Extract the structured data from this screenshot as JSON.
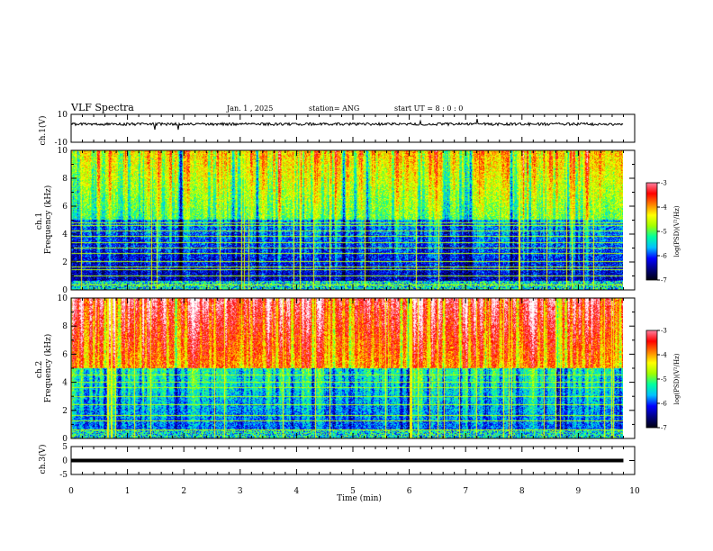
{
  "header": {
    "title": "VLF Spectra",
    "date": "Jan. 1 , 2025",
    "station": "station= ANG",
    "start": "start UT =  8 : 0 : 0"
  },
  "colors": {
    "background": "#000000",
    "colormap": [
      "#000010",
      "#000080",
      "#0000ff",
      "#00c0ff",
      "#00ffa0",
      "#a0ff00",
      "#ffff00",
      "#ff8000",
      "#ff0000",
      "#ff80a0",
      "#ffffff"
    ],
    "waveform": "#000000"
  },
  "chart_data": [
    {
      "type": "line",
      "panel": "ch1-waveform",
      "ylabel": "ch.1(V)",
      "ylim": [
        -10,
        10
      ],
      "yticks": [
        "10",
        "-10"
      ],
      "series": [
        {
          "values": [
            3,
            3
          ]
        }
      ],
      "x_range_min": [
        0,
        9.8
      ]
    },
    {
      "type": "heatmap",
      "panel": "ch1-spectrogram",
      "ylabel": "ch.1 Frequency (kHz)",
      "ylim": [
        0,
        10
      ],
      "yticks": [
        "0",
        "2",
        "4",
        "6",
        "8",
        "10"
      ],
      "x_range_min": [
        0,
        9.8
      ],
      "colorbar": {
        "label": "log(PSD)(V²/Hz)",
        "range": [
          -7,
          -3
        ],
        "ticks": [
          "-3",
          "-4",
          "-5",
          "-6",
          "-7"
        ]
      },
      "tone_lines_khz": [
        0.3,
        1.0,
        1.4,
        1.6,
        2.0,
        2.6,
        3.0,
        3.4,
        3.8,
        4.2,
        4.6,
        4.8
      ],
      "texture": {
        "seed": 11,
        "hi_freq_level": 0.38,
        "lo_freq_level": 0.1
      }
    },
    {
      "type": "heatmap",
      "panel": "ch2-spectrogram",
      "ylabel": "ch.2 Frequency (kHz)",
      "ylim": [
        0,
        10
      ],
      "yticks": [
        "0",
        "2",
        "4",
        "6",
        "8",
        "10"
      ],
      "x_range_min": [
        0,
        9.8
      ],
      "colorbar": {
        "label": "log(PSD)(V²/Hz)",
        "range": [
          -7,
          -3
        ],
        "ticks": [
          "-3",
          "-4",
          "-5",
          "-6",
          "-7"
        ]
      },
      "tone_lines_khz": [
        0.6,
        1.2,
        1.6,
        2.4,
        3.0,
        3.6,
        4.0,
        4.5
      ],
      "texture": {
        "seed": 29,
        "hi_freq_level": 0.62,
        "lo_freq_level": 0.2
      }
    },
    {
      "type": "line",
      "panel": "ch3-waveform",
      "ylabel": "ch.3(V)",
      "ylim": [
        -5,
        5
      ],
      "yticks": [
        "5",
        "0",
        "-5"
      ],
      "series": [
        {
          "values": [
            0,
            0
          ]
        }
      ],
      "x_range_min": [
        0,
        9.8
      ]
    }
  ],
  "xaxis": {
    "xlabel": "Time (min)",
    "range": [
      0,
      10
    ],
    "ticks": [
      "0",
      "1",
      "2",
      "3",
      "4",
      "5",
      "6",
      "7",
      "8",
      "9",
      "10"
    ]
  }
}
